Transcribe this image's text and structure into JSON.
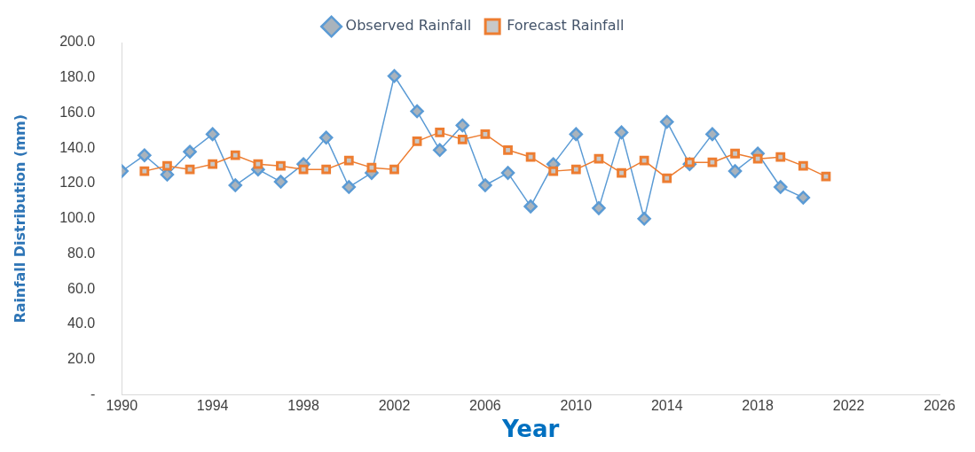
{
  "chart_data": {
    "type": "line",
    "xlabel": "Year",
    "ylabel": "Rainfall Distribution (mm)",
    "legend": "top",
    "grid": false,
    "xlim": [
      1990,
      2026
    ],
    "xticks": [
      1990,
      1994,
      1998,
      2002,
      2006,
      2010,
      2014,
      2018,
      2022,
      2026
    ],
    "ylim": [
      0,
      200
    ],
    "yticks": [
      {
        "value": 0,
        "label": "-"
      },
      {
        "value": 20,
        "label": "20.0"
      },
      {
        "value": 40,
        "label": "40.0"
      },
      {
        "value": 60,
        "label": "60.0"
      },
      {
        "value": 80,
        "label": "80.0"
      },
      {
        "value": 100,
        "label": "100.0"
      },
      {
        "value": 120,
        "label": "120.0"
      },
      {
        "value": 140,
        "label": "140.0"
      },
      {
        "value": 160,
        "label": "160.0"
      },
      {
        "value": 180,
        "label": "180.0"
      },
      {
        "value": 200,
        "label": "200.0"
      }
    ],
    "series": [
      {
        "name": "Observed Rainfall",
        "color": "#5b9bd5",
        "marker": "diamond",
        "x": [
          1990,
          1991,
          1992,
          1993,
          1994,
          1995,
          1996,
          1997,
          1998,
          1999,
          2000,
          2001,
          2002,
          2003,
          2004,
          2005,
          2006,
          2007,
          2008,
          2009,
          2010,
          2011,
          2012,
          2013,
          2014,
          2015,
          2016,
          2017,
          2018,
          2019,
          2020
        ],
        "values": [
          127,
          136,
          125,
          138,
          148,
          119,
          128,
          121,
          131,
          146,
          118,
          126,
          181,
          161,
          139,
          153,
          119,
          126,
          107,
          131,
          148,
          106,
          149,
          100,
          155,
          131,
          148,
          127,
          137,
          118,
          112
        ]
      },
      {
        "name": "Forecast Rainfall",
        "color": "#ed7d31",
        "marker": "square",
        "x": [
          1991,
          1992,
          1993,
          1994,
          1995,
          1996,
          1997,
          1998,
          1999,
          2000,
          2001,
          2002,
          2003,
          2004,
          2005,
          2006,
          2007,
          2008,
          2009,
          2010,
          2011,
          2012,
          2013,
          2014,
          2015,
          2016,
          2017,
          2018,
          2019,
          2020,
          2021
        ],
        "values": [
          127,
          130,
          128,
          131,
          136,
          131,
          130,
          128,
          128,
          133,
          129,
          128,
          144,
          149,
          145,
          148,
          139,
          135,
          127,
          128,
          134,
          126,
          133,
          123,
          132,
          132,
          137,
          134,
          135,
          130,
          124
        ]
      }
    ]
  }
}
